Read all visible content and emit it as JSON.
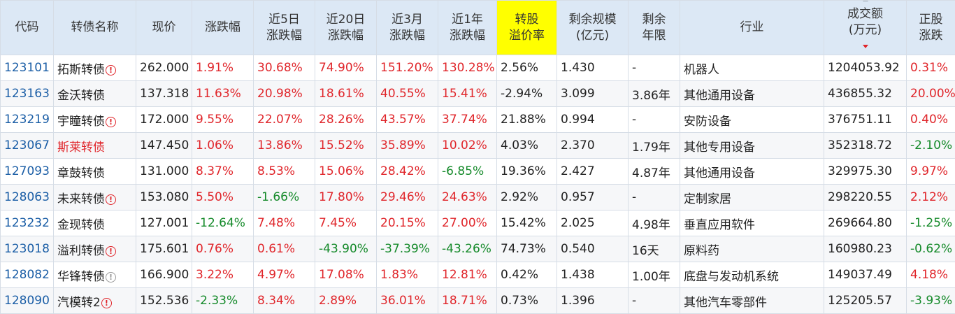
{
  "colors": {
    "up": "#e0262b",
    "down": "#158a2a",
    "header_bg": "#dce8f5",
    "highlight": "#ffff00",
    "code": "#1b5ea6"
  },
  "columns": [
    {
      "key": "code",
      "line1": "代码",
      "line2": ""
    },
    {
      "key": "name",
      "line1": "转债名称",
      "line2": ""
    },
    {
      "key": "price",
      "line1": "现价",
      "line2": ""
    },
    {
      "key": "chg",
      "line1": "涨跌幅",
      "line2": ""
    },
    {
      "key": "chg5d",
      "line1": "近5日",
      "line2": "涨跌幅"
    },
    {
      "key": "chg20d",
      "line1": "近20日",
      "line2": "涨跌幅"
    },
    {
      "key": "chg3m",
      "line1": "近3月",
      "line2": "涨跌幅"
    },
    {
      "key": "chg1y",
      "line1": "近1年",
      "line2": "涨跌幅"
    },
    {
      "key": "premium",
      "line1": "转股",
      "line2": "溢价率"
    },
    {
      "key": "scale",
      "line1": "剩余规模",
      "line2": "(亿元)"
    },
    {
      "key": "years",
      "line1": "剩余",
      "line2": "年限"
    },
    {
      "key": "industry",
      "line1": "行业",
      "line2": ""
    },
    {
      "key": "turnover",
      "line1": "成交额",
      "line2": "(万元)"
    },
    {
      "key": "stock_chg",
      "line1": "正股",
      "line2": "涨跌"
    }
  ],
  "rows": [
    {
      "code": "123101",
      "name": "拓斯转债",
      "warn": "red",
      "name_red": false,
      "price": "262.000",
      "chg": "1.91%",
      "chg5d": "30.68%",
      "chg20d": "74.90%",
      "chg3m": "151.20%",
      "chg1y": "130.28%",
      "premium": "2.56%",
      "scale": "1.430",
      "years": "-",
      "industry": "机器人",
      "turnover": "1204053.92",
      "stock_chg": "0.31%"
    },
    {
      "code": "123163",
      "name": "金沃转债",
      "warn": "",
      "name_red": false,
      "price": "137.318",
      "chg": "11.63%",
      "chg5d": "20.98%",
      "chg20d": "18.61%",
      "chg3m": "40.55%",
      "chg1y": "15.41%",
      "premium": "-2.94%",
      "scale": "3.099",
      "years": "3.86年",
      "industry": "其他通用设备",
      "turnover": "436855.32",
      "stock_chg": "20.00%"
    },
    {
      "code": "123219",
      "name": "宇瞳转债",
      "warn": "red",
      "name_red": false,
      "price": "172.000",
      "chg": "9.55%",
      "chg5d": "22.07%",
      "chg20d": "28.26%",
      "chg3m": "43.57%",
      "chg1y": "37.74%",
      "premium": "21.88%",
      "scale": "0.994",
      "years": "-",
      "industry": "安防设备",
      "turnover": "376751.11",
      "stock_chg": "0.40%"
    },
    {
      "code": "123067",
      "name": "斯莱转债",
      "warn": "",
      "name_red": true,
      "price": "147.450",
      "chg": "1.06%",
      "chg5d": "13.86%",
      "chg20d": "15.52%",
      "chg3m": "35.89%",
      "chg1y": "10.02%",
      "premium": "4.03%",
      "scale": "2.370",
      "years": "1.79年",
      "industry": "其他专用设备",
      "turnover": "352318.72",
      "stock_chg": "-2.10%"
    },
    {
      "code": "127093",
      "name": "章鼓转债",
      "warn": "",
      "name_red": false,
      "price": "131.000",
      "chg": "8.37%",
      "chg5d": "8.53%",
      "chg20d": "15.06%",
      "chg3m": "28.42%",
      "chg1y": "-6.85%",
      "premium": "19.36%",
      "scale": "2.427",
      "years": "4.87年",
      "industry": "其他通用设备",
      "turnover": "329975.30",
      "stock_chg": "9.97%"
    },
    {
      "code": "128063",
      "name": "未来转债",
      "warn": "red",
      "name_red": false,
      "price": "153.080",
      "chg": "5.50%",
      "chg5d": "-1.66%",
      "chg20d": "17.80%",
      "chg3m": "29.46%",
      "chg1y": "24.63%",
      "premium": "2.92%",
      "scale": "0.957",
      "years": "-",
      "industry": "定制家居",
      "turnover": "298220.55",
      "stock_chg": "2.12%"
    },
    {
      "code": "123232",
      "name": "金现转债",
      "warn": "",
      "name_red": false,
      "price": "127.001",
      "chg": "-12.64%",
      "chg5d": "7.48%",
      "chg20d": "7.45%",
      "chg3m": "20.15%",
      "chg1y": "27.00%",
      "premium": "15.42%",
      "scale": "2.025",
      "years": "4.98年",
      "industry": "垂直应用软件",
      "turnover": "269664.80",
      "stock_chg": "-1.25%"
    },
    {
      "code": "123018",
      "name": "溢利转债",
      "warn": "red",
      "name_red": false,
      "price": "175.601",
      "chg": "0.76%",
      "chg5d": "0.61%",
      "chg20d": "-43.90%",
      "chg3m": "-37.39%",
      "chg1y": "-43.26%",
      "premium": "74.73%",
      "scale": "0.540",
      "years": "16天",
      "industry": "原料药",
      "turnover": "160980.23",
      "stock_chg": "-0.62%"
    },
    {
      "code": "128082",
      "name": "华锋转债",
      "warn": "grey",
      "name_red": false,
      "price": "166.900",
      "chg": "3.22%",
      "chg5d": "4.97%",
      "chg20d": "17.08%",
      "chg3m": "1.83%",
      "chg1y": "12.81%",
      "premium": "0.42%",
      "scale": "1.438",
      "years": "1.00年",
      "industry": "底盘与发动机系统",
      "turnover": "149037.49",
      "stock_chg": "4.18%"
    },
    {
      "code": "128090",
      "name": "汽模转2",
      "warn": "red",
      "name_red": false,
      "price": "152.536",
      "chg": "-2.33%",
      "chg5d": "8.34%",
      "chg20d": "2.89%",
      "chg3m": "36.01%",
      "chg1y": "18.71%",
      "premium": "0.73%",
      "scale": "1.396",
      "years": "-",
      "industry": "其他汽车零部件",
      "turnover": "125205.57",
      "stock_chg": "-3.93%"
    }
  ]
}
